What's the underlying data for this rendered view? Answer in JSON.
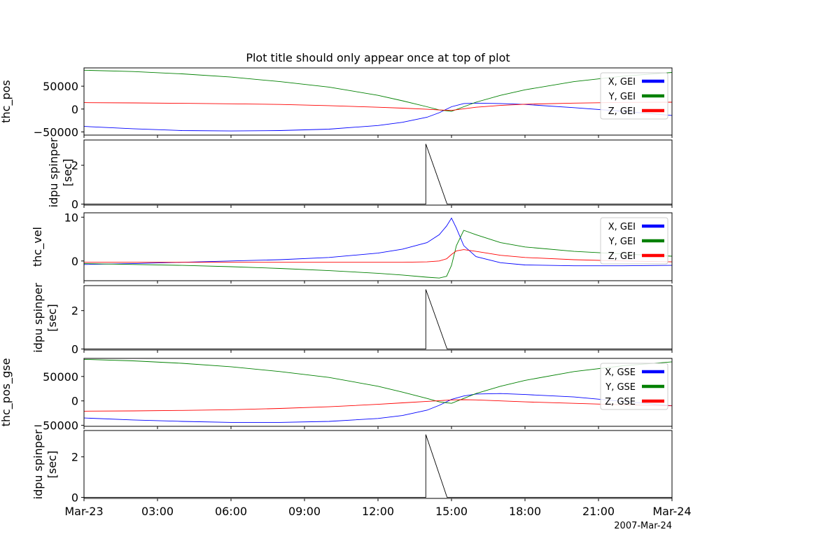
{
  "title": "Plot title should only appear once at top of plot",
  "x_ticks": [
    "Mar-23",
    "03:00",
    "06:00",
    "09:00",
    "12:00",
    "15:00",
    "18:00",
    "21:00",
    "Mar-24"
  ],
  "x_offset_label": "2007-Mar-24",
  "chart_data": [
    {
      "type": "line",
      "title": "Plot title should only appear once at top of plot",
      "ylabel": "thc_pos",
      "ylim": [
        -57000,
        90000
      ],
      "yticks": [
        -50000,
        0,
        50000
      ],
      "ytick_labels": [
        "−50000",
        "0",
        "50000"
      ],
      "legend_position": "right",
      "x_hours": [
        0,
        2,
        4,
        6,
        8,
        10,
        12,
        13,
        14,
        14.5,
        15,
        15.5,
        16,
        17,
        18,
        20,
        22,
        24
      ],
      "series": [
        {
          "name": "X, GEI",
          "color": "#0000ff",
          "values": [
            -38000,
            -43000,
            -47000,
            -48000,
            -47000,
            -44000,
            -36000,
            -29000,
            -18000,
            -8000,
            5000,
            12000,
            13000,
            12000,
            10000,
            3000,
            -5000,
            -14000
          ]
        },
        {
          "name": "Y, GEI",
          "color": "#008000",
          "values": [
            85000,
            82000,
            77000,
            70000,
            60000,
            48000,
            30000,
            18000,
            5000,
            -2000,
            -5000,
            5000,
            15000,
            30000,
            42000,
            60000,
            72000,
            80000
          ]
        },
        {
          "name": "Z, GEI",
          "color": "#ff0000",
          "values": [
            14000,
            13500,
            12500,
            11500,
            10000,
            7500,
            4000,
            2000,
            -500,
            -2000,
            -3000,
            500,
            4000,
            8000,
            10500,
            13000,
            14500,
            15000
          ]
        }
      ]
    },
    {
      "type": "line",
      "ylabel": "idpu spinper",
      "ylabel_unit": "[sec]",
      "ylim": [
        -0.05,
        3.3
      ],
      "yticks": [
        0,
        2
      ],
      "ytick_labels": [
        "0",
        "2"
      ],
      "x_hours": [
        0,
        13.95,
        13.95,
        14.82,
        14.82,
        24
      ],
      "series": [
        {
          "color": "#000000",
          "values": [
            0,
            0,
            3.1,
            0,
            0,
            0
          ]
        }
      ]
    },
    {
      "type": "line",
      "ylabel": "thc_vel",
      "ylim": [
        -4.5,
        11
      ],
      "yticks": [
        0,
        10
      ],
      "ytick_labels": [
        "0",
        "10"
      ],
      "legend_position": "right",
      "x_hours": [
        0,
        2,
        4,
        6,
        8,
        10,
        12,
        13,
        14,
        14.5,
        14.8,
        15,
        15.2,
        15.5,
        16,
        17,
        18,
        20,
        22,
        24
      ],
      "series": [
        {
          "name": "X, GEI",
          "color": "#0000ff",
          "values": [
            -0.8,
            -0.6,
            -0.3,
            0,
            0.3,
            0.8,
            1.8,
            2.7,
            4.2,
            6,
            8,
            9.8,
            7.5,
            3.5,
            1,
            -0.4,
            -0.9,
            -1.1,
            -1.1,
            -1
          ]
        },
        {
          "name": "Y, GEI",
          "color": "#008000",
          "values": [
            -0.6,
            -0.8,
            -1,
            -1.3,
            -1.7,
            -2.2,
            -2.8,
            -3.2,
            -3.7,
            -3.9,
            -3.5,
            -1,
            3.5,
            7,
            6,
            4.2,
            3.2,
            2.2,
            1.6,
            1.1
          ]
        },
        {
          "name": "Z, GEI",
          "color": "#ff0000",
          "values": [
            -0.3,
            -0.3,
            -0.3,
            -0.3,
            -0.3,
            -0.3,
            -0.3,
            -0.3,
            -0.2,
            0,
            0.5,
            1.5,
            2.3,
            2.6,
            2.2,
            1.3,
            0.8,
            0.3,
            0,
            -0.2
          ]
        }
      ]
    },
    {
      "type": "line",
      "ylabel": "idpu spinper",
      "ylabel_unit": "[sec]",
      "ylim": [
        -0.05,
        3.3
      ],
      "yticks": [
        0,
        2
      ],
      "ytick_labels": [
        "0",
        "2"
      ],
      "x_hours": [
        0,
        13.95,
        13.95,
        14.82,
        14.82,
        24
      ],
      "series": [
        {
          "color": "#000000",
          "values": [
            0,
            0,
            3.1,
            0,
            0,
            0
          ]
        }
      ]
    },
    {
      "type": "line",
      "ylabel": "thc_pos_gse",
      "ylim": [
        -52000,
        87000
      ],
      "yticks": [
        -50000,
        0,
        50000
      ],
      "ytick_labels": [
        "−50000",
        "0",
        "50000"
      ],
      "legend_position": "right",
      "x_hours": [
        0,
        2,
        4,
        6,
        8,
        10,
        12,
        13,
        14,
        14.5,
        15,
        15.5,
        16,
        17,
        18,
        20,
        22,
        24
      ],
      "series": [
        {
          "name": "X, GSE",
          "color": "#0000ff",
          "values": [
            -35000,
            -39000,
            -42000,
            -44000,
            -44000,
            -42000,
            -36000,
            -30000,
            -19000,
            -9000,
            3000,
            10000,
            14000,
            15000,
            13000,
            8000,
            -1000,
            -10000
          ]
        },
        {
          "name": "Y, GSE",
          "color": "#008000",
          "values": [
            85000,
            82000,
            77000,
            70000,
            60000,
            48000,
            30000,
            18000,
            5000,
            -2000,
            -5000,
            5000,
            15000,
            30000,
            42000,
            60000,
            72000,
            80000
          ]
        },
        {
          "name": "Z, GSE",
          "color": "#ff0000",
          "values": [
            -21000,
            -20500,
            -19500,
            -18000,
            -15500,
            -12000,
            -7000,
            -4000,
            -1000,
            500,
            2000,
            2500,
            2000,
            0,
            -2000,
            -5000,
            -8000,
            -10000
          ]
        }
      ]
    },
    {
      "type": "line",
      "ylabel": "idpu spinper",
      "ylabel_unit": "[sec]",
      "ylim": [
        -0.05,
        3.3
      ],
      "yticks": [
        0,
        2
      ],
      "ytick_labels": [
        "0",
        "2"
      ],
      "x_hours": [
        0,
        13.95,
        13.95,
        14.82,
        14.82,
        24
      ],
      "series": [
        {
          "color": "#000000",
          "values": [
            0,
            0,
            3.1,
            0,
            0,
            0
          ]
        }
      ]
    }
  ]
}
